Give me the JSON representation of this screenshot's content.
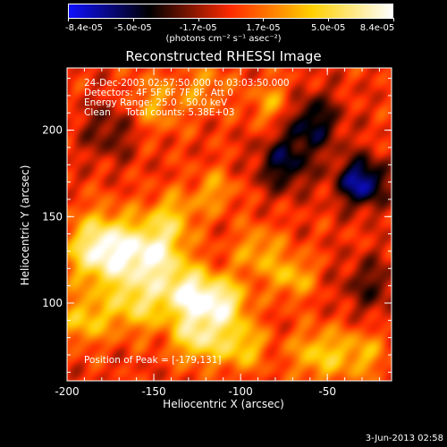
{
  "colorbar": {
    "ticks": [
      "-8.4e-05",
      "-5.0e-05",
      "-1.7e-05",
      "1.7e-05",
      "5.0e-05",
      "8.4e-05"
    ],
    "unit_label": "(photons cm⁻² s⁻¹ asec⁻²)",
    "range": [
      -8.4e-05,
      8.4e-05
    ],
    "colors": [
      "#1010ff",
      "#000000",
      "#ff2a00",
      "#ffd000",
      "#ffffff"
    ]
  },
  "chart_data": {
    "type": "heatmap",
    "title": "Reconstructed RHESSI Image",
    "xlabel": "Heliocentric X (arcsec)",
    "ylabel": "Heliocentric Y (arcsec)",
    "xlim": [
      -200,
      -13
    ],
    "ylim": [
      55,
      236
    ],
    "xticks": [
      -200,
      -150,
      -100,
      -50
    ],
    "yticks": [
      100,
      150,
      200
    ],
    "peak": {
      "x": -179,
      "y": 131
    },
    "info_lines": [
      "24-Dec-2003 02:57:50.000 to 03:03:50.000",
      "Detectors: 4F 5F 6F 7F 8F, Att 0",
      "Energy Range: 25.0 - 50.0 keV",
      "Clean     Total counts: 5.38E+03"
    ],
    "peak_text": "Position of Peak = [-179,131]"
  },
  "footer": {
    "date": "3-Jun-2013 02:58"
  }
}
